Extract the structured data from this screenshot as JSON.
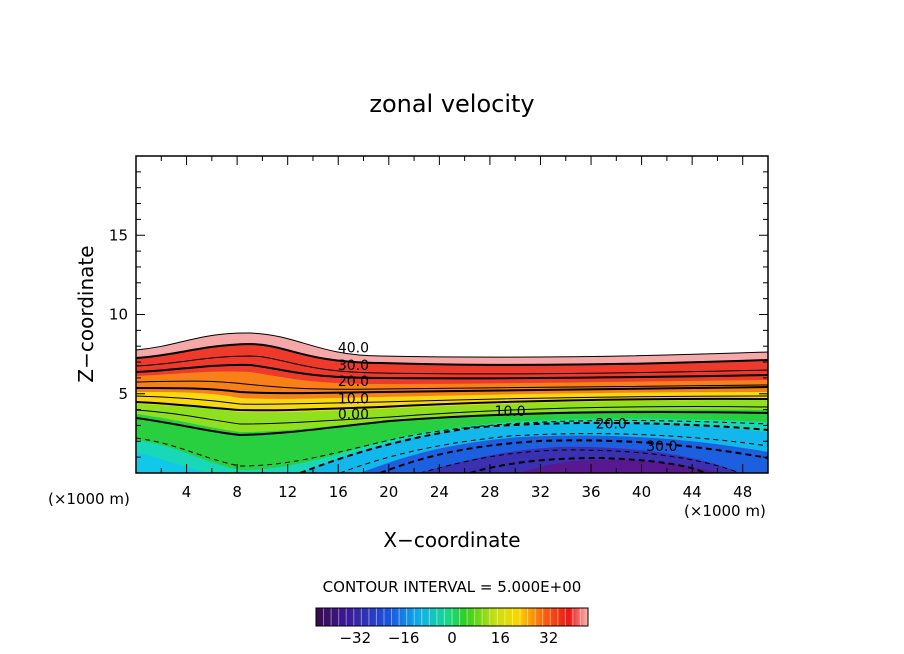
{
  "chart_data": {
    "type": "contour",
    "title": "zonal velocity",
    "xlabel": "X−coordinate",
    "ylabel": "Z−coordinate",
    "x_unit_left": "(×1000 m)",
    "x_unit_right": "(×1000 m)",
    "xlim": [
      0,
      50
    ],
    "ylim": [
      0,
      20
    ],
    "x_ticks": [
      4,
      8,
      12,
      16,
      20,
      24,
      28,
      32,
      36,
      40,
      44,
      48
    ],
    "y_ticks": [
      5,
      10,
      15
    ],
    "contour_labels": [
      {
        "text": "40.0",
        "x": 17.2,
        "z": 7.6
      },
      {
        "text": "30.0",
        "x": 17.2,
        "z": 6.5
      },
      {
        "text": "20.0",
        "x": 17.2,
        "z": 5.5
      },
      {
        "text": "10.0",
        "x": 17.2,
        "z": 4.4
      },
      {
        "text": "0.00",
        "x": 17.2,
        "z": 3.4
      },
      {
        "text": "10.0",
        "x": 29.6,
        "z": 3.6
      },
      {
        "text": "20.0",
        "x": 37.6,
        "z": 2.8
      },
      {
        "text": "30.0",
        "x": 41.6,
        "z": 1.4
      }
    ],
    "footer": "CONTOUR INTERVAL = 5.000E+00",
    "colorbar": {
      "range": [
        -45,
        45
      ],
      "ticks": [
        -32,
        -16,
        0,
        16,
        32
      ],
      "tick_labels": [
        "−32",
        "−16",
        "0",
        "16",
        "32"
      ]
    },
    "grid": false,
    "legend": "colorbar-bottom"
  }
}
